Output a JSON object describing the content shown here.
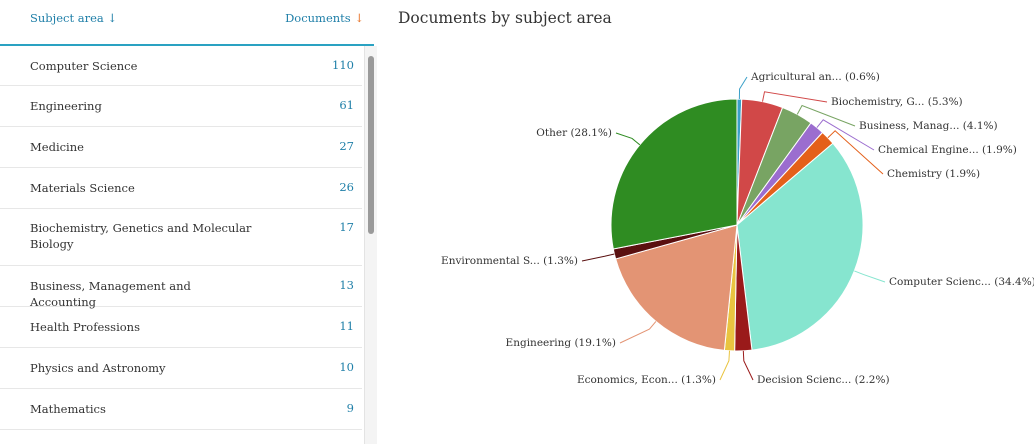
{
  "table": {
    "header_subject": "Subject area",
    "header_documents": "Documents",
    "rows": [
      {
        "name": "Computer Science",
        "count": "110"
      },
      {
        "name": "Engineering",
        "count": "61"
      },
      {
        "name": "Medicine",
        "count": "27"
      },
      {
        "name": "Materials Science",
        "count": "26"
      },
      {
        "name": "Biochemistry, Genetics and Molecular Biology",
        "count": "17"
      },
      {
        "name": "Business, Management and Accounting",
        "count": "13"
      },
      {
        "name": "Health Professions",
        "count": "11"
      },
      {
        "name": "Physics and Astronomy",
        "count": "10"
      },
      {
        "name": "Mathematics",
        "count": "9"
      }
    ]
  },
  "chart_data": {
    "type": "pie",
    "title": "Documents by subject area",
    "slices": [
      {
        "label": "Agricultural an... (0.6%)",
        "value": 0.6,
        "color": "#3aa0c8"
      },
      {
        "label": "Biochemistry, G... (5.3%)",
        "value": 5.3,
        "color": "#d14848"
      },
      {
        "label": "Business, Manag... (4.1%)",
        "value": 4.1,
        "color": "#78a463"
      },
      {
        "label": "Chemical Engine... (1.9%)",
        "value": 1.9,
        "color": "#9b6dcf"
      },
      {
        "label": "Chemistry (1.9%)",
        "value": 1.9,
        "color": "#e4601a"
      },
      {
        "label": "Computer Scienc... (34.4%)",
        "value": 34.4,
        "color": "#86e5cf"
      },
      {
        "label": "Decision Scienc... (2.2%)",
        "value": 2.2,
        "color": "#9a1a1a"
      },
      {
        "label": "Economics, Econ... (1.3%)",
        "value": 1.3,
        "color": "#e9c440"
      },
      {
        "label": "Engineering (19.1%)",
        "value": 19.1,
        "color": "#e39474"
      },
      {
        "label": "Environmental S... (1.3%)",
        "value": 1.3,
        "color": "#5a1010"
      },
      {
        "label": "Other (28.1%)",
        "value": 28.1,
        "color": "#2f8c22"
      }
    ]
  }
}
